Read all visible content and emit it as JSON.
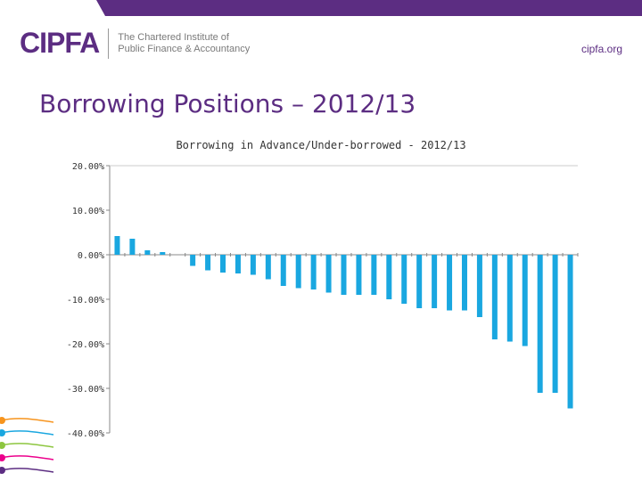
{
  "header": {
    "org_short": "CIPFA",
    "org_tagline_line1": "The Chartered Institute of",
    "org_tagline_line2": "Public Finance & Accountancy",
    "url": "cipfa.org"
  },
  "slide": {
    "title": "Borrowing Positions – 2012/13"
  },
  "colors": {
    "brand_purple": "#5c2d82",
    "bar": "#1aa7e0",
    "axis": "#888888"
  },
  "chart_data": {
    "type": "bar",
    "title": "Borrowing in Advance/Under-borrowed - 2012/13",
    "xlabel": "",
    "ylabel": "",
    "ylim": [
      -40,
      20
    ],
    "yticks": [
      20,
      10,
      0,
      -10,
      -20,
      -30,
      -40
    ],
    "ytick_labels": [
      "20.00%",
      "10.00%",
      "0.00%",
      "-10.00%",
      "-20.00%",
      "-30.00%",
      "-40.00%"
    ],
    "values": [
      4.2,
      3.6,
      1.0,
      0.6,
      0.0,
      -2.5,
      -3.5,
      -4.0,
      -4.2,
      -4.5,
      -5.5,
      -7.0,
      -7.5,
      -7.8,
      -8.5,
      -9.0,
      -9.0,
      -9.0,
      -10.0,
      -11.0,
      -12.0,
      -12.0,
      -12.5,
      -12.5,
      -14.0,
      -19.0,
      -19.5,
      -20.5,
      -31.0,
      -31.0,
      -34.5
    ],
    "grid": false,
    "legend": "none"
  }
}
